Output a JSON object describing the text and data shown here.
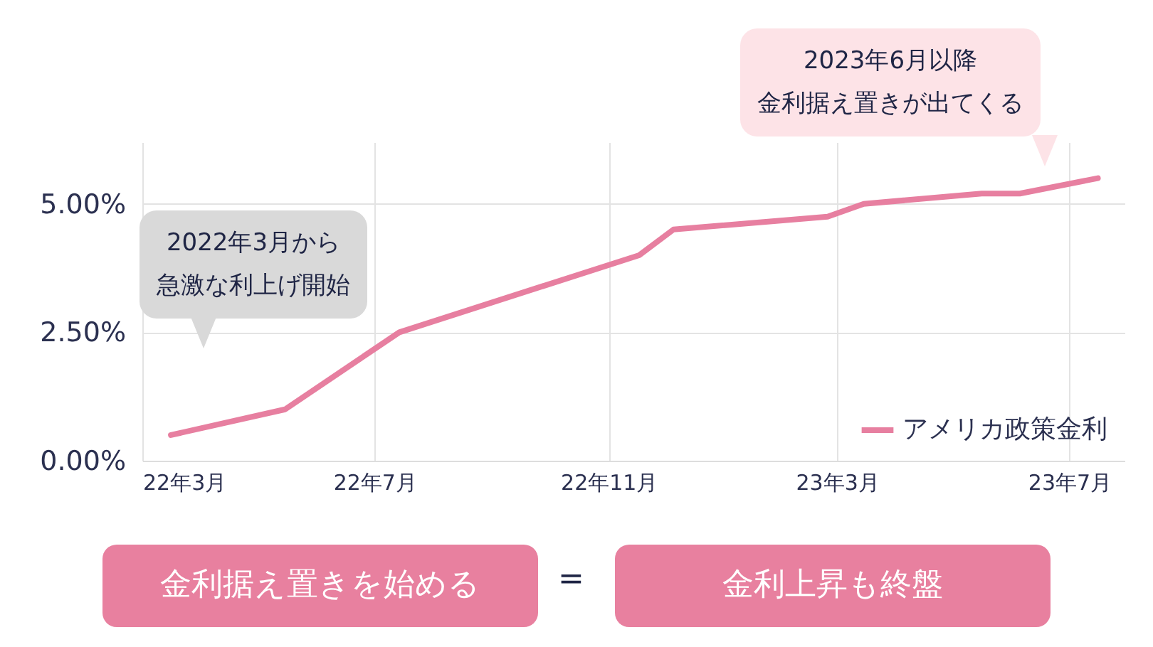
{
  "chart_data": {
    "type": "line",
    "x": [
      "2022-03-16",
      "2022-05-15",
      "2022-07-14",
      "2022-11-17",
      "2022-12-05",
      "2023-02-24",
      "2023-03-15",
      "2023-05-16",
      "2023-06-05",
      "2023-07-16"
    ],
    "series": [
      {
        "name": "アメリカ政策金利",
        "color": "#e77fa0",
        "values": [
          0.5,
          1.0,
          2.5,
          4.0,
          4.5,
          4.75,
          5.0,
          5.2,
          5.2,
          5.5
        ]
      }
    ],
    "xlim": [
      "2022-03-01",
      "2023-07-30"
    ],
    "xticks": [
      {
        "value": "2022-03-01",
        "label": "22年3月"
      },
      {
        "value": "2022-07-01",
        "label": "22年7月"
      },
      {
        "value": "2022-11-01",
        "label": "22年11月"
      },
      {
        "value": "2023-03-01",
        "label": "23年3月"
      },
      {
        "value": "2023-07-01",
        "label": "23年7月"
      }
    ],
    "ylim": [
      0,
      6.2
    ],
    "yticks": [
      {
        "value": 0,
        "label": "0.00%"
      },
      {
        "value": 2.5,
        "label": "2.50%"
      },
      {
        "value": 5,
        "label": "5.00%"
      }
    ],
    "grid": true,
    "legend": "bottom right",
    "marker": "none",
    "line_style": "solid",
    "annotations": [
      "2022年3月から",
      "急激な利上げ開始",
      "2023年6月以降",
      "金利据え置きが出てくる",
      "金利据え置きを始める",
      "=",
      "金利上昇も終盤"
    ]
  }
}
